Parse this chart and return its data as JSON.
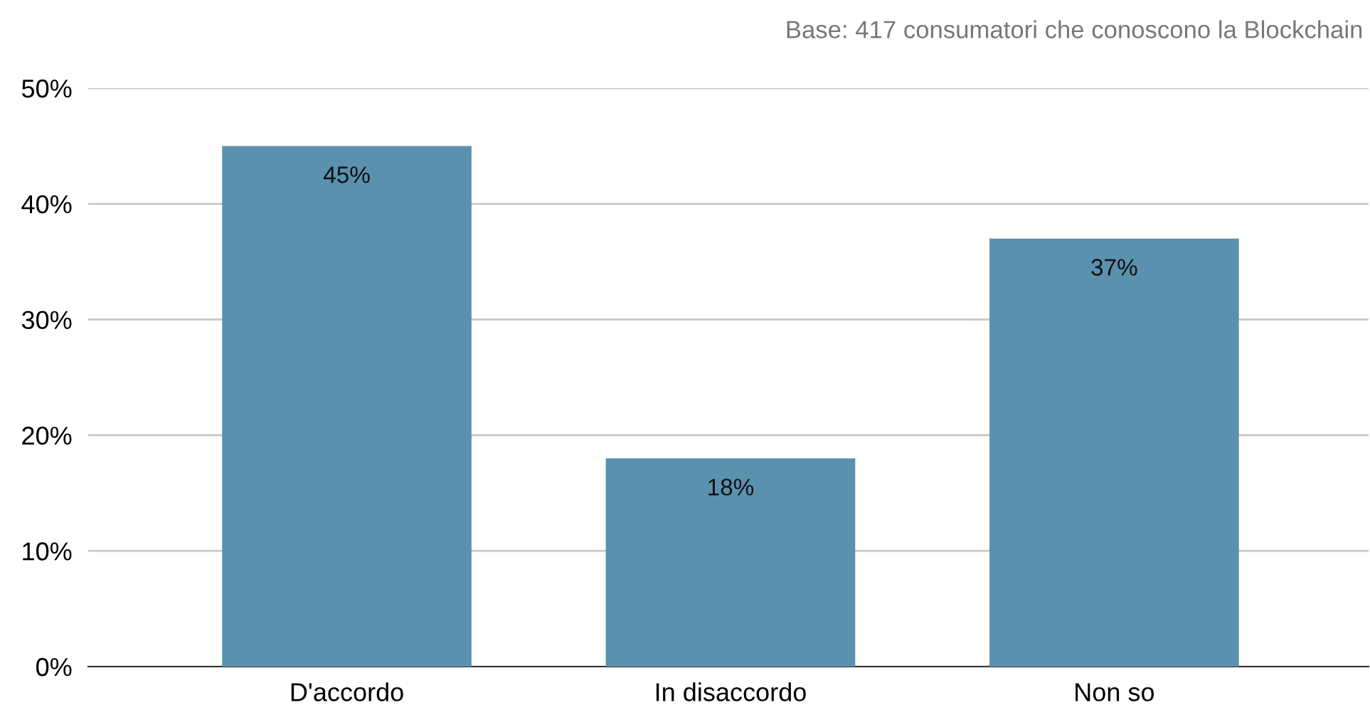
{
  "chart_data": {
    "type": "bar",
    "subtitle": "Base: 417 consumatori che conoscono la Blockchain",
    "categories": [
      "D'accordo",
      "In disaccordo",
      "Non so"
    ],
    "values": [
      45,
      18,
      37
    ],
    "value_labels": [
      "45%",
      "18%",
      "37%"
    ],
    "color": "#5a91ae",
    "ylim": [
      0,
      50
    ],
    "yticks": [
      {
        "value": 0,
        "label": "0%"
      },
      {
        "value": 10,
        "label": "10%"
      },
      {
        "value": 20,
        "label": "20%"
      },
      {
        "value": 30,
        "label": "30%"
      },
      {
        "value": 40,
        "label": "40%"
      },
      {
        "value": 50,
        "label": "50%"
      }
    ],
    "grid": "y",
    "legend": false
  }
}
